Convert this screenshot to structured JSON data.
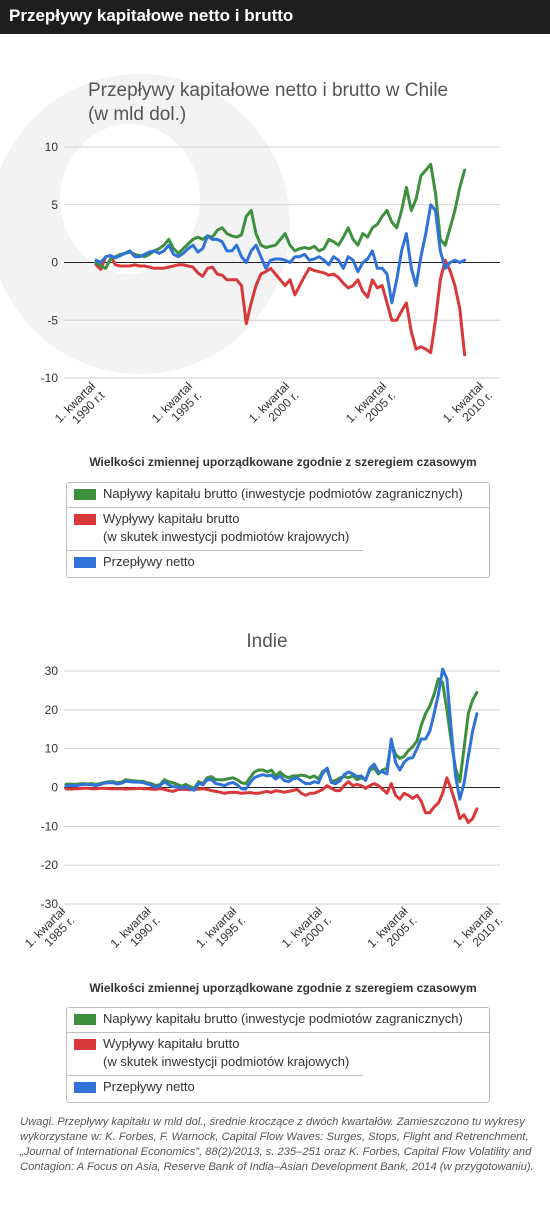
{
  "header": {
    "title": "Przepływy kapitałowe netto i brutto"
  },
  "colors": {
    "green": "#3e8f3e",
    "red": "#d9383a",
    "blue": "#2f73d9",
    "grid": "#cfcfcf"
  },
  "chart_data": [
    {
      "type": "line",
      "title": "Przepływy kapitałowe netto i brutto w Chile",
      "subtitle": "(w mld dol.)",
      "xlabel": "Wielkości zmiennej uporządkowane zgodnie z szeregiem czasowym",
      "ylim": [
        -10,
        10
      ],
      "yticks": [
        10,
        5,
        0,
        -5,
        -10
      ],
      "xtick_labels": [
        [
          "1. kwartał",
          "1990 r.t"
        ],
        [
          "1. kwartał",
          "1995 r."
        ],
        [
          "1. kwartał",
          "2000 r."
        ],
        [
          "1. kwartał",
          "2005 r."
        ],
        [
          "1. kwartał",
          "2010 r."
        ]
      ],
      "xtick_years": [
        1990,
        1995,
        2000,
        2005,
        2010
      ],
      "x_start": 1990,
      "x_step": 0.25,
      "series": [
        {
          "name": "Napływy kapitału brutto (inwestycje podmiotów zagranicznych)",
          "color": "#3e8f3e",
          "values": [
            0,
            -0.3,
            -0.5,
            0.3,
            0.5,
            0.7,
            0.8,
            0.9,
            0.7,
            0.6,
            0.5,
            0.7,
            1.0,
            1.2,
            1.5,
            2.0,
            1.2,
            0.8,
            1.2,
            1.6,
            2.0,
            2.2,
            2.0,
            2.3,
            2.2,
            2.8,
            3.0,
            2.5,
            2.3,
            2.2,
            2.4,
            4.0,
            4.5,
            2.5,
            1.5,
            1.3,
            1.4,
            1.5,
            2.0,
            2.5,
            1.5,
            1.0,
            1.2,
            1.3,
            1.2,
            1.4,
            1.0,
            1.2,
            2.0,
            1.8,
            1.5,
            2.2,
            3.0,
            2.0,
            1.5,
            2.5,
            2.2,
            3.0,
            3.3,
            4.0,
            4.5,
            3.5,
            3.0,
            4.5,
            6.5,
            4.5,
            5.5,
            7.5,
            8.0,
            8.5,
            6.0,
            2.0,
            1.5,
            3.0,
            4.5,
            6.5,
            8.0
          ]
        },
        {
          "name": "Wypływy kapitału brutto (w skutek inwestycji podmiotów krajowych)",
          "color": "#d9383a",
          "values": [
            -0.2,
            -0.6,
            0.5,
            0.6,
            -0.2,
            -0.3,
            -0.3,
            -0.3,
            -0.2,
            -0.3,
            -0.3,
            -0.4,
            -0.5,
            -0.5,
            -0.5,
            -0.4,
            -0.3,
            -0.2,
            -0.2,
            -0.3,
            -0.4,
            -0.9,
            -1.2,
            -0.5,
            -0.4,
            -1.0,
            -1.1,
            -1.5,
            -1.5,
            -1.5,
            -2.0,
            -5.3,
            -3.5,
            -2.0,
            -1.0,
            -0.8,
            -0.5,
            -1.0,
            -1.5,
            -2.0,
            -1.5,
            -2.8,
            -2.0,
            -1.2,
            -0.5,
            -0.7,
            -0.8,
            -0.9,
            -1.1,
            -1.0,
            -1.3,
            -1.8,
            -2.2,
            -2.0,
            -1.5,
            -2.5,
            -3.0,
            -1.5,
            -2.2,
            -2.0,
            -3.5,
            -5.0,
            -5.0,
            -4.2,
            -3.5,
            -6.0,
            -7.5,
            -7.3,
            -7.5,
            -7.8,
            -5.0,
            -1.5,
            0.2,
            -0.7,
            -2.0,
            -4.0,
            -8.0
          ]
        },
        {
          "name": "Przepływy netto",
          "color": "#2f73d9",
          "values": [
            0.2,
            0,
            0.5,
            0.6,
            0.4,
            0.6,
            0.8,
            1.0,
            0.5,
            0.5,
            0.7,
            0.9,
            1.0,
            0.8,
            1.0,
            1.5,
            0.7,
            0.5,
            0.8,
            1.2,
            1.5,
            0.9,
            1.2,
            2.3,
            2.0,
            2.0,
            1.8,
            1.0,
            1.0,
            1.5,
            0.5,
            0,
            1.0,
            1.5,
            0.5,
            -0.5,
            0.2,
            0.3,
            0.3,
            0.2,
            0,
            0.5,
            0.5,
            0.7,
            0.2,
            0.3,
            0.5,
            0.2,
            -0.2,
            0.5,
            0.2,
            -0.5,
            0.5,
            0.2,
            -0.8,
            0,
            0.3,
            1.0,
            -0.5,
            -0.5,
            -1.0,
            -3.5,
            -1.5,
            1.0,
            2.5,
            -0.5,
            -2.0,
            0.5,
            2.5,
            5.0,
            4.5,
            1.0,
            -0.5,
            0,
            0.2,
            0,
            0.2
          ]
        }
      ],
      "legend": [
        {
          "label": "Napływy kapitału brutto (inwestycje podmiotów zagranicznych)",
          "color": "#3e8f3e"
        },
        {
          "label": "Wypływy kapitału brutto",
          "label2": "(w skutek inwestycji podmiotów krajowych)",
          "color": "#d9383a"
        },
        {
          "label": "Przepływy netto",
          "color": "#2f73d9"
        }
      ]
    },
    {
      "type": "line",
      "title": "Indie",
      "xlabel": "Wielkości zmiennej uporządkowane zgodnie z szeregiem czasowym",
      "ylim": [
        -30,
        30
      ],
      "yticks": [
        30,
        20,
        10,
        0,
        -10,
        -20,
        -30
      ],
      "xtick_labels": [
        [
          "1. kwartał",
          "1985 r."
        ],
        [
          "1. kwartał",
          "1990 r."
        ],
        [
          "1. kwartał",
          "1995 r."
        ],
        [
          "1. kwartał",
          "2000 r."
        ],
        [
          "1. kwartał",
          "2005 r."
        ],
        [
          "1. kwartał",
          "2010 r."
        ]
      ],
      "xtick_years": [
        1985,
        1990,
        1995,
        2000,
        2005,
        2010
      ],
      "x_start": 1985,
      "x_step": 0.25,
      "series": [
        {
          "name": "Napływy kapitału brutto (inwestycje podmiotów zagranicznych)",
          "color": "#3e8f3e",
          "values": [
            0.8,
            0.9,
            0.8,
            0.9,
            1.0,
            0.9,
            1.0,
            0.8,
            1.0,
            1.3,
            1.5,
            1.5,
            1.2,
            1.4,
            2.0,
            1.8,
            1.7,
            1.6,
            1.6,
            1.2,
            1.0,
            0.5,
            0.8,
            2.0,
            1.5,
            1.2,
            0.8,
            0.3,
            0.8,
            0.2,
            -0.2,
            1.5,
            1.0,
            2.5,
            2.8,
            2.0,
            2.0,
            2.0,
            2.3,
            2.5,
            2.0,
            1.2,
            1.0,
            2.5,
            4.0,
            4.5,
            4.5,
            4.0,
            4.5,
            3.0,
            4.0,
            3.0,
            2.5,
            3.0,
            3.0,
            3.2,
            3.0,
            2.5,
            3.0,
            2.2,
            4.2,
            4.5,
            1.5,
            1.8,
            2.5,
            2.8,
            2.5,
            3.0,
            2.0,
            2.5,
            2.0,
            4.5,
            5.0,
            3.5,
            4.5,
            5.0,
            11.5,
            8.5,
            7.5,
            8.0,
            9.5,
            10.5,
            12.0,
            16.0,
            19.0,
            21.0,
            24.0,
            28.0,
            27.0,
            20.0,
            12.0,
            5.0,
            1.5,
            10.0,
            19.0,
            22.5,
            24.5
          ]
        },
        {
          "name": "Wypływy kapitału brutto (w skutek inwestycji podmiotów krajowych)",
          "color": "#d9383a",
          "values": [
            -0.3,
            -0.4,
            -0.3,
            -0.3,
            -0.2,
            -0.2,
            -0.3,
            -0.3,
            -0.2,
            -0.2,
            -0.3,
            -0.3,
            -0.3,
            -0.3,
            -0.4,
            -0.3,
            -0.3,
            -0.2,
            -0.3,
            -0.3,
            -0.4,
            -0.5,
            -0.3,
            -0.5,
            -0.8,
            -1.0,
            -0.6,
            -0.5,
            -0.5,
            -0.6,
            -0.5,
            -0.4,
            -0.3,
            -0.5,
            -0.8,
            -1.0,
            -1.2,
            -1.5,
            -1.3,
            -1.2,
            -1.3,
            -1.5,
            -1.4,
            -1.3,
            -1.5,
            -1.5,
            -1.2,
            -1.0,
            -1.3,
            -0.8,
            -1.0,
            -1.2,
            -1.0,
            -0.8,
            -0.5,
            -1.5,
            -2.0,
            -1.5,
            -1.5,
            -1.0,
            -0.5,
            0.5,
            -0.2,
            -0.8,
            -0.8,
            0.5,
            1.5,
            0.5,
            0.8,
            0.5,
            -0.2,
            0.5,
            1.0,
            0.5,
            -0.5,
            -1.5,
            1.0,
            -2.0,
            -3.0,
            -1.5,
            -2.0,
            -2.8,
            -2.0,
            -3.5,
            -6.5,
            -6.5,
            -5.0,
            -4.0,
            -1.5,
            2.5,
            -0.5,
            -4.0,
            -8.0,
            -7.0,
            -9.0,
            -8.0,
            -5.5
          ]
        },
        {
          "name": "Przepływy netto",
          "color": "#2f73d9",
          "values": [
            0.5,
            0.5,
            0.5,
            0.6,
            0.8,
            0.8,
            0.7,
            0.5,
            0.8,
            1.1,
            1.2,
            1.2,
            0.9,
            1.1,
            1.6,
            1.5,
            1.4,
            1.4,
            1.3,
            0.9,
            0.6,
            0,
            0.5,
            1.5,
            0.7,
            0.2,
            0.2,
            -0.2,
            0.3,
            -0.4,
            -0.7,
            1.1,
            0.7,
            2.0,
            2.0,
            1.0,
            0.8,
            0.5,
            1.0,
            1.3,
            0.7,
            -0.3,
            -0.4,
            1.2,
            2.5,
            3.0,
            3.3,
            3.0,
            3.2,
            2.2,
            3.0,
            1.8,
            1.5,
            2.2,
            2.5,
            1.7,
            1.0,
            1.0,
            1.5,
            1.2,
            3.7,
            5.0,
            1.3,
            1.0,
            1.7,
            3.3,
            4.0,
            3.5,
            2.8,
            3.0,
            1.8,
            5.0,
            6.0,
            4.0,
            4.0,
            3.5,
            12.5,
            6.5,
            4.5,
            6.5,
            7.5,
            7.7,
            10.0,
            12.5,
            12.5,
            14.5,
            19.0,
            24.0,
            30.5,
            28.0,
            15.0,
            3.0,
            -3.0,
            1.0,
            8.0,
            14.5,
            19.0
          ]
        }
      ],
      "legend": [
        {
          "label": "Napływy kapitału brutto (inwestycje podmiotów zagranicznych)",
          "color": "#3e8f3e"
        },
        {
          "label": "Wypływy kapitału brutto",
          "label2": "(w skutek inwestycji podmiotów krajowych)",
          "color": "#d9383a"
        },
        {
          "label": "Przepływy netto",
          "color": "#2f73d9"
        }
      ]
    }
  ],
  "notes": "Uwagi. Przepływy kapitału w mld dol., średnie kroczące z dwóch kwartałów. Zamieszczono tu wykresy wykorzystane w: K. Forbes, F. Warnock, Capital Flow Waves: Surges, Stops, Flight and Retrenchment, „Journal of International Economics”, 88(2)/2013, s. 235–251 oraz K. Forbes, Capital Flow Volatility and Contagion: A Focus on Asia, Reserve Bank of India–Asian Development Bank, 2014 (w przygotowaniu)."
}
